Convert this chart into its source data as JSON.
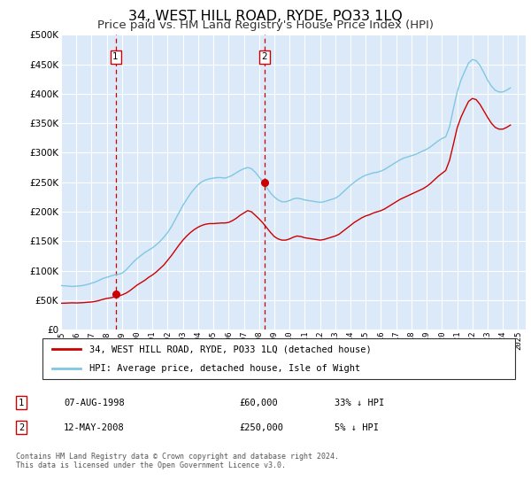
{
  "title": "34, WEST HILL ROAD, RYDE, PO33 1LQ",
  "subtitle": "Price paid vs. HM Land Registry's House Price Index (HPI)",
  "title_fontsize": 11.5,
  "subtitle_fontsize": 9.5,
  "ylim": [
    0,
    500000
  ],
  "yticks": [
    0,
    50000,
    100000,
    150000,
    200000,
    250000,
    300000,
    350000,
    400000,
    450000,
    500000
  ],
  "ytick_labels": [
    "£0",
    "£50K",
    "£100K",
    "£150K",
    "£200K",
    "£250K",
    "£300K",
    "£350K",
    "£400K",
    "£450K",
    "£500K"
  ],
  "xlim_start": 1995.0,
  "xlim_end": 2025.5,
  "plot_bg_color": "#dce9f8",
  "grid_color": "#ffffff",
  "hpi_color": "#7ec8e3",
  "price_color": "#cc0000",
  "marker_color": "#cc0000",
  "vline_color": "#cc0000",
  "sale1_x": 1998.58,
  "sale1_y": 60000,
  "sale2_x": 2008.36,
  "sale2_y": 250000,
  "legend_line1": "34, WEST HILL ROAD, RYDE, PO33 1LQ (detached house)",
  "legend_line2": "HPI: Average price, detached house, Isle of Wight",
  "table_row1": [
    "1",
    "07-AUG-1998",
    "£60,000",
    "33% ↓ HPI"
  ],
  "table_row2": [
    "2",
    "12-MAY-2008",
    "£250,000",
    "5% ↓ HPI"
  ],
  "footnote": "Contains HM Land Registry data © Crown copyright and database right 2024.\nThis data is licensed under the Open Government Licence v3.0.",
  "hpi_data_x": [
    1995.0,
    1995.25,
    1995.5,
    1995.75,
    1996.0,
    1996.25,
    1996.5,
    1996.75,
    1997.0,
    1997.25,
    1997.5,
    1997.75,
    1998.0,
    1998.25,
    1998.5,
    1998.75,
    1999.0,
    1999.25,
    1999.5,
    1999.75,
    2000.0,
    2000.25,
    2000.5,
    2000.75,
    2001.0,
    2001.25,
    2001.5,
    2001.75,
    2002.0,
    2002.25,
    2002.5,
    2002.75,
    2003.0,
    2003.25,
    2003.5,
    2003.75,
    2004.0,
    2004.25,
    2004.5,
    2004.75,
    2005.0,
    2005.25,
    2005.5,
    2005.75,
    2006.0,
    2006.25,
    2006.5,
    2006.75,
    2007.0,
    2007.25,
    2007.5,
    2007.75,
    2008.0,
    2008.25,
    2008.5,
    2008.75,
    2009.0,
    2009.25,
    2009.5,
    2009.75,
    2010.0,
    2010.25,
    2010.5,
    2010.75,
    2011.0,
    2011.25,
    2011.5,
    2011.75,
    2012.0,
    2012.25,
    2012.5,
    2012.75,
    2013.0,
    2013.25,
    2013.5,
    2013.75,
    2014.0,
    2014.25,
    2014.5,
    2014.75,
    2015.0,
    2015.25,
    2015.5,
    2015.75,
    2016.0,
    2016.25,
    2016.5,
    2016.75,
    2017.0,
    2017.25,
    2017.5,
    2017.75,
    2018.0,
    2018.25,
    2018.5,
    2018.75,
    2019.0,
    2019.25,
    2019.5,
    2019.75,
    2020.0,
    2020.25,
    2020.5,
    2020.75,
    2021.0,
    2021.25,
    2021.5,
    2021.75,
    2022.0,
    2022.25,
    2022.5,
    2022.75,
    2023.0,
    2023.25,
    2023.5,
    2023.75,
    2024.0,
    2024.25,
    2024.5
  ],
  "hpi_data_y": [
    75000,
    74500,
    74000,
    73500,
    74000,
    74500,
    75500,
    77000,
    79000,
    81000,
    84000,
    87000,
    89000,
    91000,
    93000,
    94000,
    96000,
    101000,
    108000,
    115000,
    121000,
    126000,
    131000,
    135000,
    139000,
    144000,
    150000,
    157000,
    165000,
    175000,
    187000,
    199000,
    211000,
    221000,
    231000,
    239000,
    246000,
    251000,
    254000,
    256000,
    257000,
    258000,
    258000,
    257000,
    259000,
    262000,
    266000,
    270000,
    273000,
    275000,
    273000,
    267000,
    259000,
    251000,
    241000,
    232000,
    225000,
    220000,
    217000,
    217000,
    219000,
    222000,
    223000,
    222000,
    220000,
    219000,
    218000,
    217000,
    216000,
    217000,
    219000,
    221000,
    223000,
    227000,
    233000,
    239000,
    245000,
    250000,
    255000,
    259000,
    262000,
    264000,
    266000,
    267000,
    269000,
    272000,
    276000,
    280000,
    284000,
    288000,
    291000,
    293000,
    295000,
    297000,
    300000,
    303000,
    306000,
    310000,
    315000,
    320000,
    324000,
    327000,
    344000,
    374000,
    403000,
    423000,
    438000,
    452000,
    458000,
    456000,
    448000,
    436000,
    423000,
    413000,
    406000,
    403000,
    403000,
    406000,
    410000
  ],
  "price_data_x": [
    1995.0,
    1995.25,
    1995.5,
    1995.75,
    1996.0,
    1996.25,
    1996.5,
    1996.75,
    1997.0,
    1997.25,
    1997.5,
    1997.75,
    1998.0,
    1998.25,
    1998.5,
    1998.75,
    1999.0,
    1999.25,
    1999.5,
    1999.75,
    2000.0,
    2000.25,
    2000.5,
    2000.75,
    2001.0,
    2001.25,
    2001.5,
    2001.75,
    2002.0,
    2002.25,
    2002.5,
    2002.75,
    2003.0,
    2003.25,
    2003.5,
    2003.75,
    2004.0,
    2004.25,
    2004.5,
    2004.75,
    2005.0,
    2005.25,
    2005.5,
    2005.75,
    2006.0,
    2006.25,
    2006.5,
    2006.75,
    2007.0,
    2007.25,
    2007.5,
    2007.75,
    2008.0,
    2008.25,
    2008.5,
    2008.75,
    2009.0,
    2009.25,
    2009.5,
    2009.75,
    2010.0,
    2010.25,
    2010.5,
    2010.75,
    2011.0,
    2011.25,
    2011.5,
    2011.75,
    2012.0,
    2012.25,
    2012.5,
    2012.75,
    2013.0,
    2013.25,
    2013.5,
    2013.75,
    2014.0,
    2014.25,
    2014.5,
    2014.75,
    2015.0,
    2015.25,
    2015.5,
    2015.75,
    2016.0,
    2016.25,
    2016.5,
    2016.75,
    2017.0,
    2017.25,
    2017.5,
    2017.75,
    2018.0,
    2018.25,
    2018.5,
    2018.75,
    2019.0,
    2019.25,
    2019.5,
    2019.75,
    2020.0,
    2020.25,
    2020.5,
    2020.75,
    2021.0,
    2021.25,
    2021.5,
    2021.75,
    2022.0,
    2022.25,
    2022.5,
    2022.75,
    2023.0,
    2023.25,
    2023.5,
    2023.75,
    2024.0,
    2024.25,
    2024.5
  ],
  "price_data_y": [
    45000,
    45200,
    45500,
    45800,
    45500,
    45800,
    46200,
    46700,
    47200,
    48200,
    49700,
    51700,
    53200,
    54200,
    55700,
    57200,
    59200,
    62000,
    66000,
    71000,
    76000,
    80000,
    84000,
    89000,
    93000,
    98000,
    104000,
    110000,
    118000,
    126000,
    135000,
    144000,
    152000,
    159000,
    165000,
    170000,
    174000,
    177000,
    179000,
    180000,
    180000,
    180500,
    181000,
    181000,
    182000,
    185000,
    189000,
    194000,
    198000,
    202000,
    200000,
    194000,
    188000,
    181000,
    173000,
    165000,
    158000,
    154000,
    152000,
    152000,
    154000,
    157000,
    159000,
    158000,
    156000,
    155000,
    154000,
    153000,
    152000,
    153000,
    155000,
    157000,
    159000,
    162000,
    167000,
    172000,
    177000,
    182000,
    186000,
    190000,
    193000,
    195000,
    198000,
    200000,
    202000,
    205000,
    209000,
    213000,
    217000,
    221000,
    224000,
    227000,
    230000,
    233000,
    236000,
    239000,
    243000,
    248000,
    254000,
    260000,
    265000,
    270000,
    287000,
    314000,
    342000,
    360000,
    374000,
    387000,
    392000,
    390000,
    382000,
    371000,
    360000,
    350000,
    343000,
    340000,
    340000,
    343000,
    347000
  ]
}
